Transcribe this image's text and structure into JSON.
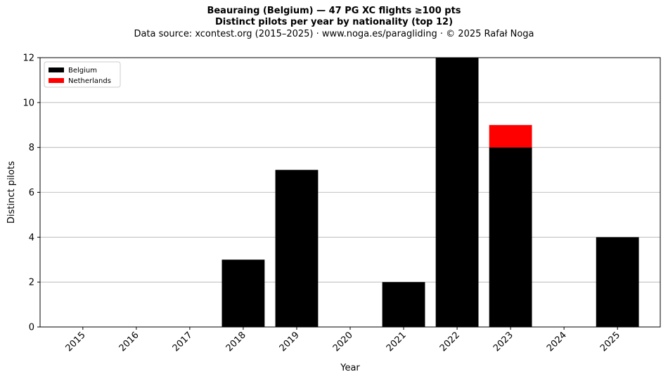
{
  "chart_data": {
    "type": "bar",
    "stacked": true,
    "title": "Beauraing (Belgium)  —  47 PG XC flights ≥100 pts",
    "title2": "Distinct pilots per year by nationality (top 12)",
    "subtitle": "Data source: xcontest.org (2015–2025)  ·  www.noga.es/paragliding  ·  © 2025 Rafał Noga",
    "xlabel": "Year",
    "ylabel": "Distinct pilots",
    "ylim": [
      0,
      12
    ],
    "yticks": [
      "0",
      "2",
      "4",
      "6",
      "8",
      "10",
      "12"
    ],
    "grid": "horizontal",
    "legend_position": "top-left",
    "categories": [
      "2015",
      "2016",
      "2017",
      "2018",
      "2019",
      "2020",
      "2021",
      "2022",
      "2023",
      "2024",
      "2025"
    ],
    "series": [
      {
        "name": "Belgium",
        "color": "#000000",
        "values": [
          0,
          0,
          0,
          3,
          7,
          0,
          2,
          12,
          8,
          0,
          4
        ]
      },
      {
        "name": "Netherlands",
        "color": "#ff0000",
        "values": [
          0,
          0,
          0,
          0,
          0,
          0,
          0,
          0,
          1,
          0,
          0
        ]
      }
    ]
  }
}
